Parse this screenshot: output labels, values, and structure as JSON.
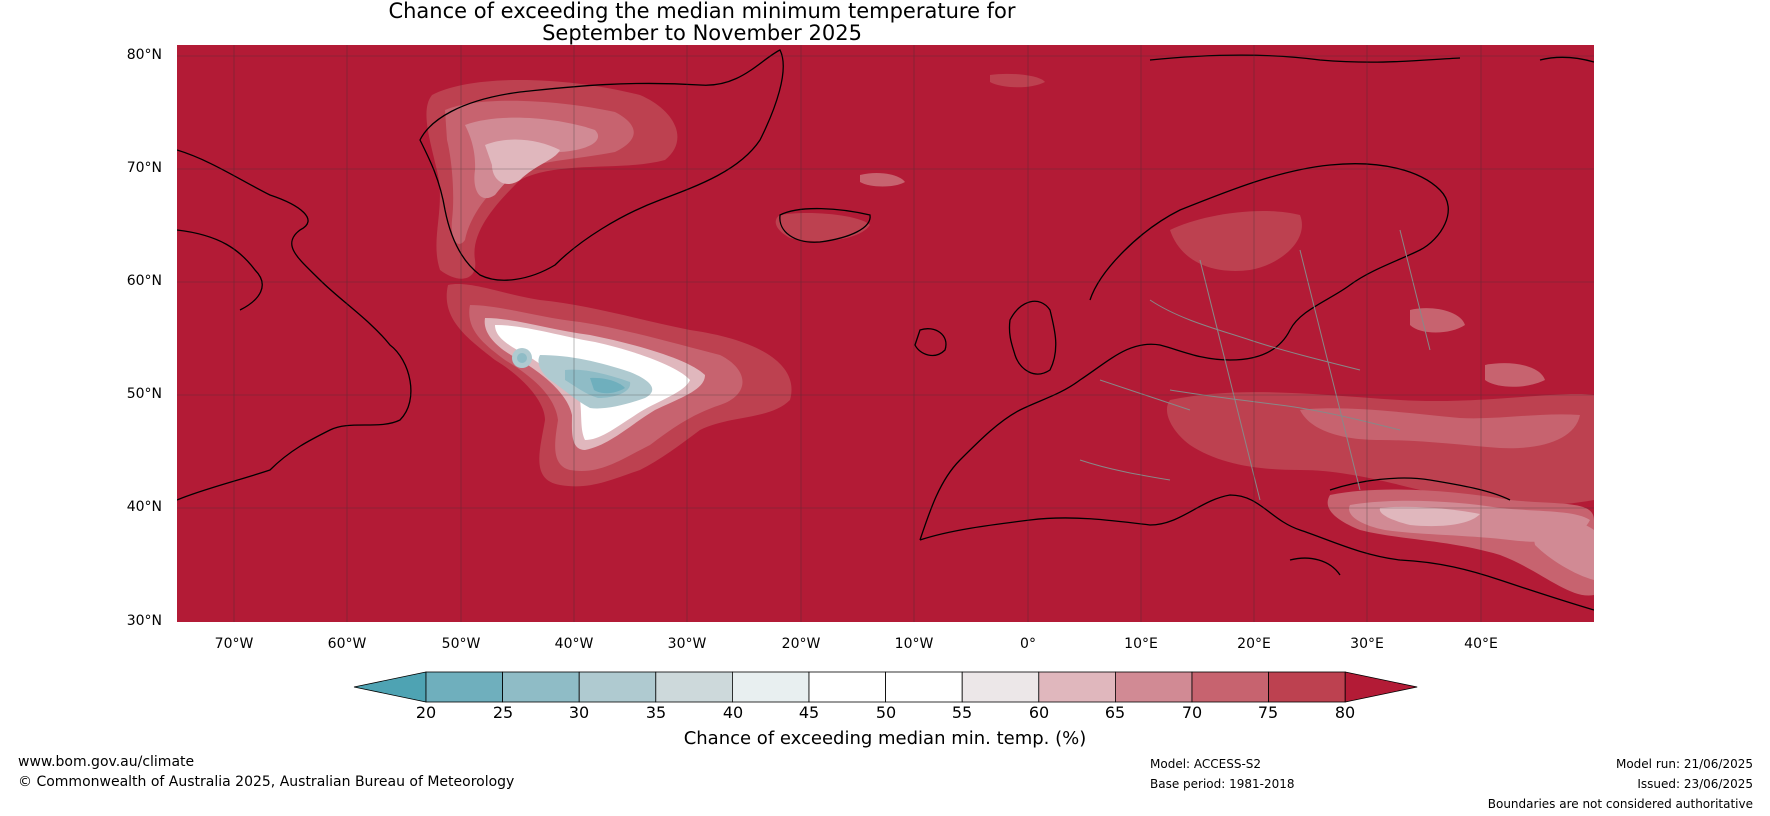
{
  "title": {
    "line1": "Chance of exceeding the median minimum temperature for",
    "line2": "September to November 2025"
  },
  "map": {
    "background_color": "#b31b36",
    "lat_labels": [
      "80°N",
      "70°N",
      "60°N",
      "50°N",
      "40°N",
      "30°N"
    ],
    "lon_labels": [
      "70°W",
      "60°W",
      "50°W",
      "40°W",
      "30°W",
      "20°W",
      "10°W",
      "0°",
      "10°E",
      "20°E",
      "30°E",
      "40°E"
    ],
    "extent": {
      "lon": [
        -75,
        50
      ],
      "lat": [
        30,
        81
      ]
    }
  },
  "colorbar": {
    "ticks": [
      "20",
      "25",
      "30",
      "35",
      "40",
      "45",
      "50",
      "55",
      "60",
      "65",
      "70",
      "75",
      "80"
    ],
    "colors": [
      "#4ea3b3",
      "#6fafbd",
      "#8fbcc6",
      "#afcad0",
      "#cdd9db",
      "#e8eff0",
      "#ffffff",
      "#ffffff",
      "#ece7e8",
      "#e0b7bd",
      "#d18a94",
      "#c7636f",
      "#bd4150",
      "#b31b36"
    ],
    "label": "Chance of exceeding median min. temp. (%)"
  },
  "footer": {
    "website": "www.bom.gov.au/climate",
    "copyright": "© Commonwealth of Australia 2025, Australian Bureau of Meteorology",
    "model": "Model: ACCESS-S2",
    "base_period": "Base period: 1981-2018",
    "model_run": "Model run: 21/06/2025",
    "issued": "Issued: 23/06/2025",
    "disclaimer": "Boundaries are not considered authoritative"
  }
}
